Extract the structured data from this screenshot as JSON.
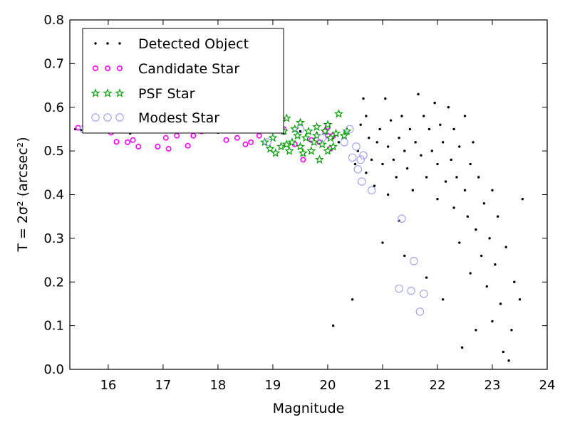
{
  "chart_data": {
    "type": "scatter",
    "xlabel": "Magnitude",
    "ylabel": "T = 2σ² (arcsec²)",
    "xlim": [
      15.3,
      24.0
    ],
    "ylim": [
      0.0,
      0.8
    ],
    "xticks": [
      "16",
      "17",
      "18",
      "19",
      "20",
      "21",
      "22",
      "23",
      "24"
    ],
    "yticks": [
      "0.0",
      "0.1",
      "0.2",
      "0.3",
      "0.4",
      "0.5",
      "0.6",
      "0.7",
      "0.8"
    ],
    "grid": false,
    "legend_position": "top-left",
    "series": [
      {
        "name": "Detected Object",
        "marker": "dot",
        "color": "#000000",
        "points": [
          [
            15.4,
            0.55
          ],
          [
            15.5,
            0.548
          ],
          [
            15.7,
            0.545
          ],
          [
            16.0,
            0.552
          ],
          [
            16.4,
            0.54
          ],
          [
            16.8,
            0.545
          ],
          [
            17.2,
            0.547
          ],
          [
            17.6,
            0.55
          ],
          [
            18.0,
            0.542
          ],
          [
            18.4,
            0.546
          ],
          [
            18.8,
            0.55
          ],
          [
            19.2,
            0.54
          ],
          [
            19.5,
            0.545
          ],
          [
            19.8,
            0.54
          ],
          [
            20.1,
            0.53
          ],
          [
            20.2,
            0.52
          ],
          [
            20.1,
            0.1
          ],
          [
            20.45,
            0.16
          ],
          [
            20.5,
            0.47
          ],
          [
            20.55,
            0.5
          ],
          [
            20.6,
            0.56
          ],
          [
            20.65,
            0.62
          ],
          [
            20.7,
            0.58
          ],
          [
            20.7,
            0.45
          ],
          [
            20.75,
            0.53
          ],
          [
            20.8,
            0.48
          ],
          [
            20.85,
            0.42
          ],
          [
            20.9,
            0.52
          ],
          [
            20.95,
            0.55
          ],
          [
            21.0,
            0.29
          ],
          [
            21.0,
            0.47
          ],
          [
            21.05,
            0.62
          ],
          [
            21.1,
            0.51
          ],
          [
            21.1,
            0.4
          ],
          [
            21.15,
            0.57
          ],
          [
            21.2,
            0.48
          ],
          [
            21.25,
            0.44
          ],
          [
            21.3,
            0.53
          ],
          [
            21.3,
            0.34
          ],
          [
            21.35,
            0.58
          ],
          [
            21.4,
            0.5
          ],
          [
            21.4,
            0.26
          ],
          [
            21.45,
            0.46
          ],
          [
            21.5,
            0.55
          ],
          [
            21.55,
            0.41
          ],
          [
            21.6,
            0.52
          ],
          [
            21.65,
            0.63
          ],
          [
            21.7,
            0.49
          ],
          [
            21.75,
            0.58
          ],
          [
            21.8,
            0.44
          ],
          [
            21.8,
            0.21
          ],
          [
            21.85,
            0.55
          ],
          [
            21.9,
            0.5
          ],
          [
            21.95,
            0.61
          ],
          [
            22.0,
            0.47
          ],
          [
            22.0,
            0.39
          ],
          [
            22.05,
            0.56
          ],
          [
            22.1,
            0.52
          ],
          [
            22.1,
            0.16
          ],
          [
            22.15,
            0.43
          ],
          [
            22.2,
            0.6
          ],
          [
            22.25,
            0.48
          ],
          [
            22.3,
            0.37
          ],
          [
            22.3,
            0.55
          ],
          [
            22.35,
            0.44
          ],
          [
            22.4,
            0.51
          ],
          [
            22.4,
            0.29
          ],
          [
            22.45,
            0.05
          ],
          [
            22.5,
            0.41
          ],
          [
            22.5,
            0.58
          ],
          [
            22.55,
            0.35
          ],
          [
            22.6,
            0.47
          ],
          [
            22.6,
            0.22
          ],
          [
            22.65,
            0.52
          ],
          [
            22.7,
            0.32
          ],
          [
            22.7,
            0.09
          ],
          [
            22.75,
            0.44
          ],
          [
            22.8,
            0.26
          ],
          [
            22.85,
            0.38
          ],
          [
            22.9,
            0.19
          ],
          [
            22.95,
            0.3
          ],
          [
            23.0,
            0.11
          ],
          [
            23.0,
            0.41
          ],
          [
            23.05,
            0.24
          ],
          [
            23.1,
            0.35
          ],
          [
            23.15,
            0.15
          ],
          [
            23.2,
            0.04
          ],
          [
            23.25,
            0.28
          ],
          [
            23.3,
            0.02
          ],
          [
            23.35,
            0.09
          ],
          [
            23.4,
            0.2
          ],
          [
            23.5,
            0.16
          ],
          [
            23.55,
            0.39
          ]
        ]
      },
      {
        "name": "Candidate Star",
        "marker": "small-circle",
        "color": "#ff00ff",
        "points": [
          [
            15.45,
            0.553
          ],
          [
            15.6,
            0.548
          ],
          [
            16.05,
            0.542
          ],
          [
            16.15,
            0.521
          ],
          [
            16.35,
            0.52
          ],
          [
            16.45,
            0.525
          ],
          [
            16.55,
            0.51
          ],
          [
            16.9,
            0.51
          ],
          [
            17.05,
            0.53
          ],
          [
            17.1,
            0.505
          ],
          [
            17.25,
            0.535
          ],
          [
            17.45,
            0.512
          ],
          [
            17.55,
            0.535
          ],
          [
            17.7,
            0.545
          ],
          [
            17.95,
            0.548
          ],
          [
            18.15,
            0.525
          ],
          [
            18.35,
            0.53
          ],
          [
            18.5,
            0.515
          ],
          [
            18.6,
            0.52
          ],
          [
            18.75,
            0.535
          ],
          [
            19.2,
            0.55
          ],
          [
            19.4,
            0.515
          ],
          [
            19.55,
            0.48
          ],
          [
            19.7,
            0.525
          ],
          [
            19.85,
            0.52
          ],
          [
            19.95,
            0.545
          ],
          [
            20.0,
            0.535
          ],
          [
            20.0,
            0.555
          ],
          [
            20.05,
            0.505
          ],
          [
            20.1,
            0.535
          ]
        ]
      },
      {
        "name": "PSF Star",
        "marker": "star",
        "color": "#00a000",
        "points": [
          [
            18.85,
            0.52
          ],
          [
            18.95,
            0.505
          ],
          [
            19.0,
            0.53
          ],
          [
            19.05,
            0.495
          ],
          [
            19.15,
            0.51
          ],
          [
            19.2,
            0.545
          ],
          [
            19.25,
            0.515
          ],
          [
            19.3,
            0.5
          ],
          [
            19.35,
            0.52
          ],
          [
            19.4,
            0.55
          ],
          [
            19.45,
            0.535
          ],
          [
            19.5,
            0.51
          ],
          [
            19.5,
            0.565
          ],
          [
            19.55,
            0.495
          ],
          [
            19.6,
            0.53
          ],
          [
            19.65,
            0.545
          ],
          [
            19.7,
            0.5
          ],
          [
            19.75,
            0.52
          ],
          [
            19.8,
            0.555
          ],
          [
            19.8,
            0.535
          ],
          [
            19.85,
            0.48
          ],
          [
            19.9,
            0.515
          ],
          [
            19.95,
            0.545
          ],
          [
            20.0,
            0.5
          ],
          [
            20.0,
            0.56
          ],
          [
            20.05,
            0.53
          ],
          [
            20.1,
            0.51
          ],
          [
            20.15,
            0.54
          ],
          [
            20.2,
            0.585
          ],
          [
            20.3,
            0.535
          ],
          [
            20.35,
            0.545
          ],
          [
            19.25,
            0.575
          ]
        ]
      },
      {
        "name": "Modest Star",
        "marker": "open-circle",
        "color": "#9b9bf5",
        "points": [
          [
            15.55,
            0.55
          ],
          [
            15.95,
            0.578
          ],
          [
            16.15,
            0.572
          ],
          [
            16.35,
            0.568
          ],
          [
            16.55,
            0.575
          ],
          [
            17.0,
            0.565
          ],
          [
            17.4,
            0.57
          ],
          [
            17.85,
            0.567
          ],
          [
            18.3,
            0.572
          ],
          [
            18.9,
            0.52
          ],
          [
            19.5,
            0.55
          ],
          [
            19.9,
            0.53
          ],
          [
            20.3,
            0.52
          ],
          [
            20.4,
            0.55
          ],
          [
            20.45,
            0.485
          ],
          [
            20.52,
            0.51
          ],
          [
            20.55,
            0.458
          ],
          [
            20.6,
            0.48
          ],
          [
            20.62,
            0.43
          ],
          [
            20.65,
            0.49
          ],
          [
            20.8,
            0.41
          ],
          [
            21.3,
            0.185
          ],
          [
            21.35,
            0.345
          ],
          [
            21.52,
            0.18
          ],
          [
            21.57,
            0.248
          ],
          [
            21.68,
            0.132
          ],
          [
            21.75,
            0.173
          ]
        ]
      }
    ]
  }
}
